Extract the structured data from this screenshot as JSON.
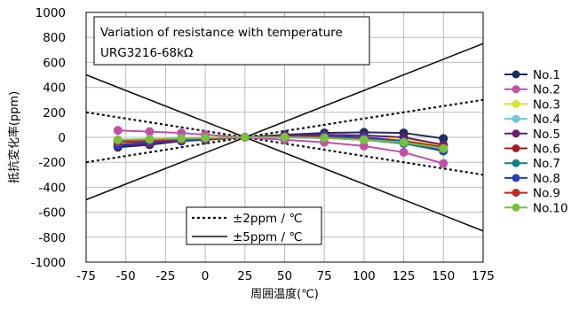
{
  "chart_data": {
    "type": "line",
    "title_box": {
      "line1": "Variation of resistance with temperature",
      "line2": "URG3216-68kΩ"
    },
    "xlabel": "周囲温度(℃)",
    "ylabel": "抵抗変化率(ppm)",
    "xlim": [
      -75,
      175
    ],
    "ylim": [
      -1000,
      1000
    ],
    "xticks": [
      -75,
      -50,
      -25,
      0,
      25,
      50,
      75,
      100,
      125,
      150,
      175
    ],
    "xtick_labels": [
      "-75",
      "-50",
      "-25",
      "0",
      "25",
      "50",
      "75",
      "100",
      "125",
      "150",
      "175"
    ],
    "yticks": [
      1000,
      800,
      600,
      400,
      200,
      0,
      -200,
      -400,
      -600,
      -800,
      -1000
    ],
    "ytick_labels": [
      "1000",
      "800",
      "600",
      "400",
      "200",
      "0",
      "-200",
      "-400",
      "-600",
      "-800",
      "-1000"
    ],
    "grid": true,
    "x": [
      -55,
      -35,
      -15,
      0,
      25,
      50,
      75,
      100,
      125,
      150
    ],
    "series": [
      {
        "name": "No.1",
        "color": "#1f2d5a",
        "values": [
          -80,
          -60,
          -30,
          -15,
          0,
          20,
          35,
          40,
          35,
          -10
        ]
      },
      {
        "name": "No.2",
        "color": "#c050a8",
        "values": [
          55,
          45,
          35,
          20,
          0,
          -20,
          -40,
          -70,
          -120,
          -210
        ]
      },
      {
        "name": "No.3",
        "color": "#e0e030",
        "values": [
          -40,
          -30,
          -15,
          -10,
          0,
          10,
          10,
          0,
          -20,
          -70
        ]
      },
      {
        "name": "No.4",
        "color": "#70c8d8",
        "values": [
          -30,
          -25,
          -15,
          -10,
          0,
          5,
          5,
          -10,
          -40,
          -100
        ]
      },
      {
        "name": "No.5",
        "color": "#6a1a70",
        "values": [
          -70,
          -50,
          -30,
          -20,
          0,
          15,
          20,
          15,
          0,
          -60
        ]
      },
      {
        "name": "No.6",
        "color": "#a02020",
        "values": [
          -40,
          -30,
          -20,
          -10,
          0,
          5,
          5,
          -10,
          -30,
          -80
        ]
      },
      {
        "name": "No.7",
        "color": "#188080",
        "values": [
          -30,
          -25,
          -15,
          -10,
          0,
          0,
          -5,
          -20,
          -50,
          -110
        ]
      },
      {
        "name": "No.8",
        "color": "#2040c0",
        "values": [
          -60,
          -40,
          -25,
          -15,
          0,
          10,
          10,
          0,
          -30,
          -110
        ]
      },
      {
        "name": "No.9",
        "color": "#c02828",
        "values": [
          -35,
          -25,
          -15,
          -10,
          0,
          5,
          0,
          -15,
          -40,
          -90
        ]
      },
      {
        "name": "No.10",
        "color": "#78c040",
        "values": [
          -20,
          -15,
          -10,
          -5,
          0,
          0,
          -5,
          -20,
          -40,
          -90
        ]
      }
    ],
    "reference_lines": [
      {
        "name": "±2ppm / ℃",
        "style": "dotted",
        "slope_ppm_per_c": 2
      },
      {
        "name": "±5ppm / ℃",
        "style": "solid",
        "slope_ppm_per_c": 5
      }
    ],
    "reference_center_temp": 25,
    "legend_position": "right"
  }
}
